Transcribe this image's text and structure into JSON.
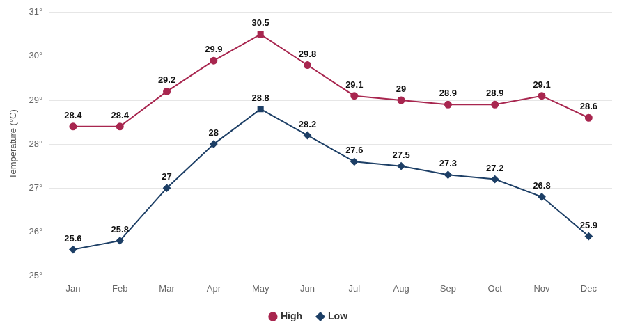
{
  "chart_data": {
    "type": "line",
    "y_label": "Temperature (°C)",
    "categories": [
      "Jan",
      "Feb",
      "Mar",
      "Apr",
      "May",
      "Jun",
      "Jul",
      "Aug",
      "Sep",
      "Oct",
      "Nov",
      "Dec"
    ],
    "series": [
      {
        "name": "High",
        "color": "#a8264f",
        "marker": "circle",
        "values": [
          28.4,
          28.4,
          29.2,
          29.9,
          30.5,
          29.8,
          29.1,
          29,
          28.9,
          28.9,
          29.1,
          28.6
        ]
      },
      {
        "name": "Low",
        "color": "#1d3f66",
        "marker": "diamond",
        "values": [
          25.6,
          25.8,
          27,
          28,
          28.8,
          28.2,
          27.6,
          27.5,
          27.3,
          27.2,
          26.8,
          25.9
        ]
      }
    ],
    "ylim": [
      25,
      31
    ],
    "yticks": [
      {
        "value": 25,
        "label": "25°"
      },
      {
        "value": 26,
        "label": "26°"
      },
      {
        "value": 27,
        "label": "27°"
      },
      {
        "value": 28,
        "label": "28°"
      },
      {
        "value": 29,
        "label": "29°"
      },
      {
        "value": 30,
        "label": "30°"
      },
      {
        "value": 31,
        "label": "31°"
      }
    ],
    "grid": true,
    "legend": "bottom",
    "data_labels": true
  }
}
